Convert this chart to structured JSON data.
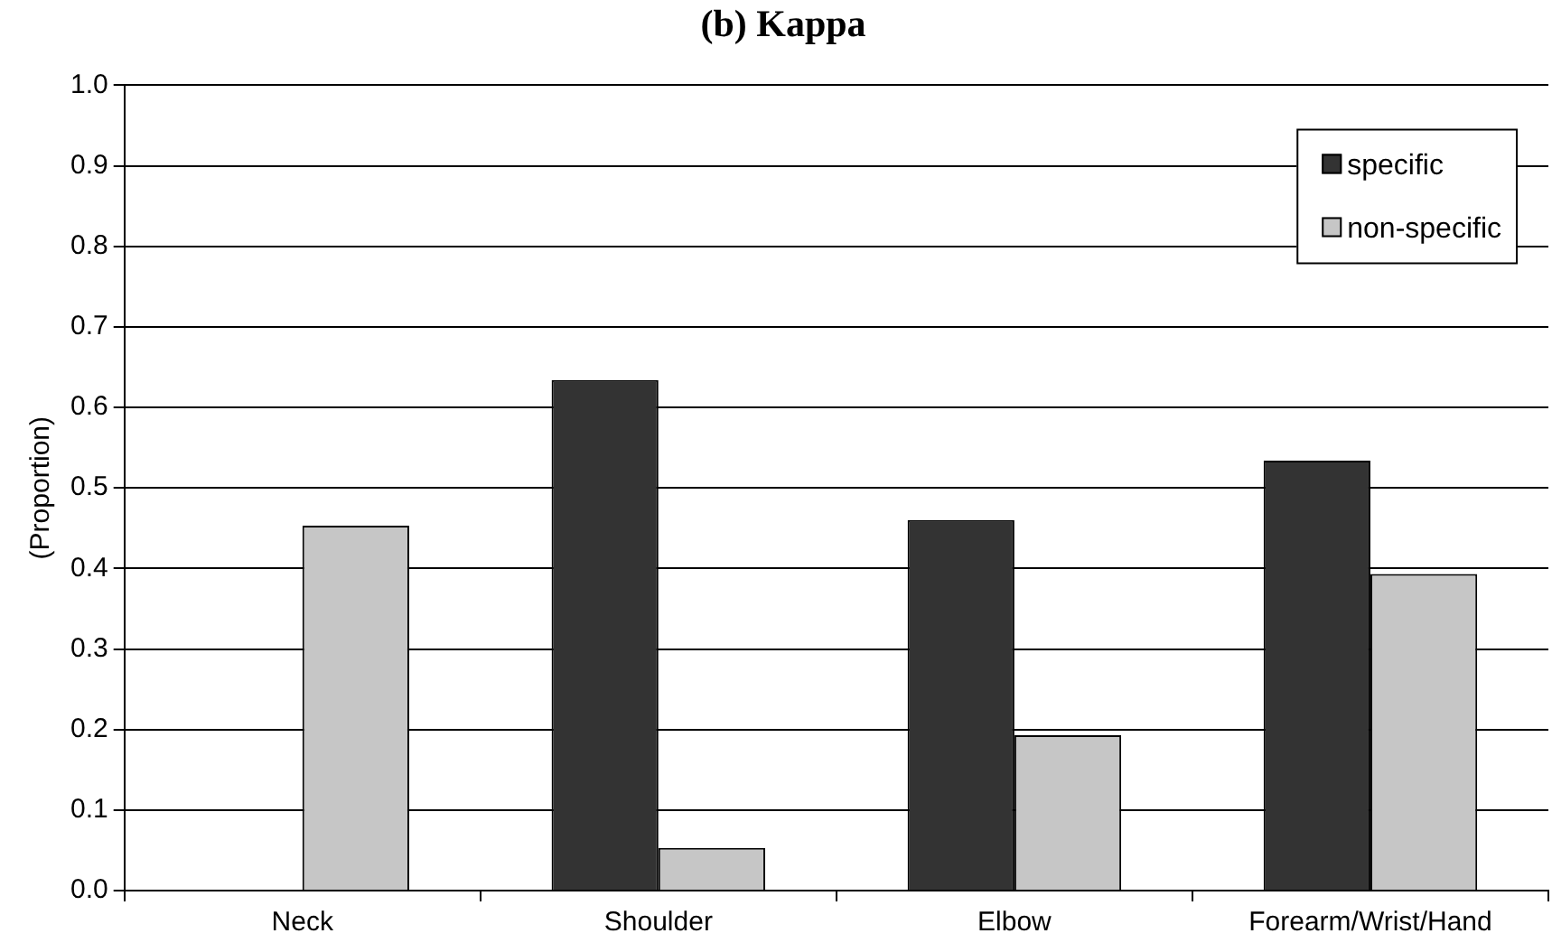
{
  "chart_data": {
    "type": "bar",
    "title": "(b) Kappa",
    "ylabel": "(Proportion)",
    "categories": [
      "Neck",
      "Shoulder",
      "Elbow",
      "Forearm/Wrist/Hand"
    ],
    "series": [
      {
        "name": "specific",
        "color": "#333333",
        "values": [
          null,
          0.634,
          0.46,
          0.534
        ]
      },
      {
        "name": "non-specific",
        "color": "#c6c6c6",
        "values": [
          0.453,
          0.053,
          0.193,
          0.393
        ]
      }
    ],
    "ylim": [
      0,
      1
    ],
    "yticks": [
      {
        "value": 0,
        "label": "0.0"
      },
      {
        "value": 0.1,
        "label": "0.1"
      },
      {
        "value": 0.2,
        "label": "0.2"
      },
      {
        "value": 0.3,
        "label": "0.3"
      },
      {
        "value": 0.4,
        "label": "0.4"
      },
      {
        "value": 0.5,
        "label": "0.5"
      },
      {
        "value": 0.6,
        "label": "0.6"
      },
      {
        "value": 0.7,
        "label": "0.7"
      },
      {
        "value": 0.8,
        "label": "0.8"
      },
      {
        "value": 0.9,
        "label": "0.9"
      },
      {
        "value": 1,
        "label": "1.0"
      }
    ],
    "grid": "y",
    "legend": "top right"
  }
}
